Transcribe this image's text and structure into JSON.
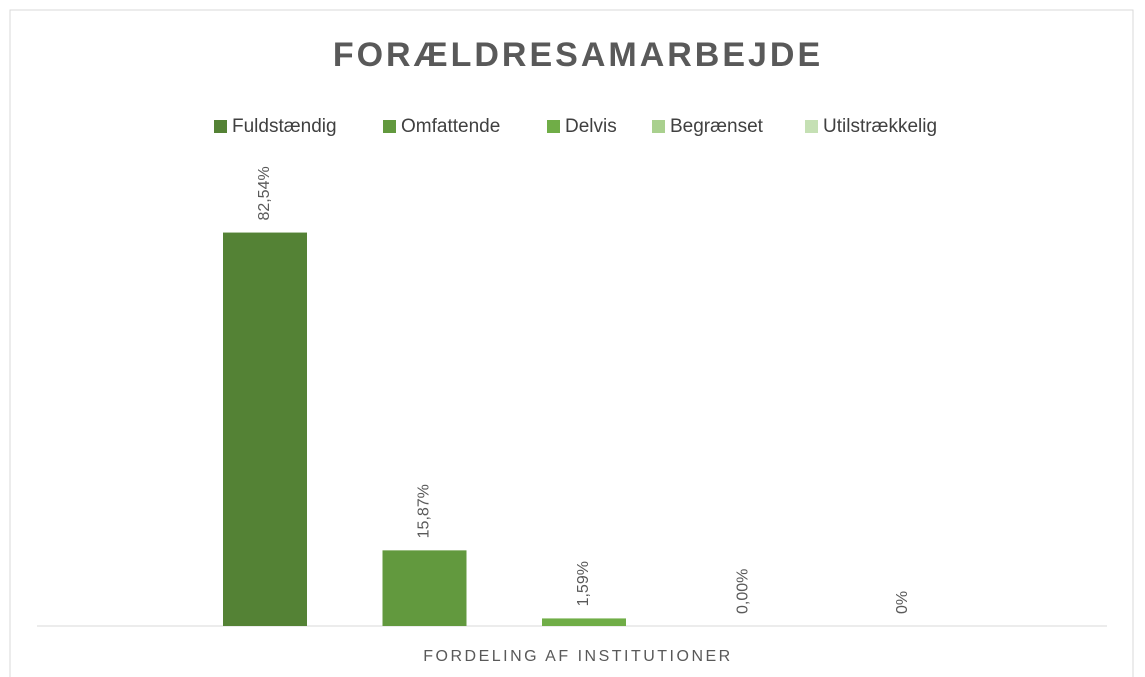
{
  "chart_data": {
    "type": "bar",
    "title": "FORÆLDRESAMARBEJDE",
    "categories": [
      "FORDELING AF INSTITUTIONER"
    ],
    "series": [
      {
        "name": "Fuldstændig",
        "color": "#548235",
        "values": [
          82.54
        ],
        "value_labels": [
          "82,54%"
        ]
      },
      {
        "name": "Omfattende",
        "color": "#62993e",
        "values": [
          15.87
        ],
        "value_labels": [
          "15,87%"
        ]
      },
      {
        "name": "Delvis",
        "color": "#70ad47",
        "values": [
          1.59
        ],
        "value_labels": [
          "1,59%"
        ]
      },
      {
        "name": "Begrænset",
        "color": "#a9d08e",
        "values": [
          0
        ],
        "value_labels": [
          "0,00%"
        ]
      },
      {
        "name": "Utilstrækkelig",
        "color": "#c5e0b4",
        "values": [
          0
        ],
        "value_labels": [
          "0%"
        ]
      }
    ],
    "ylim": [
      0,
      90
    ]
  }
}
